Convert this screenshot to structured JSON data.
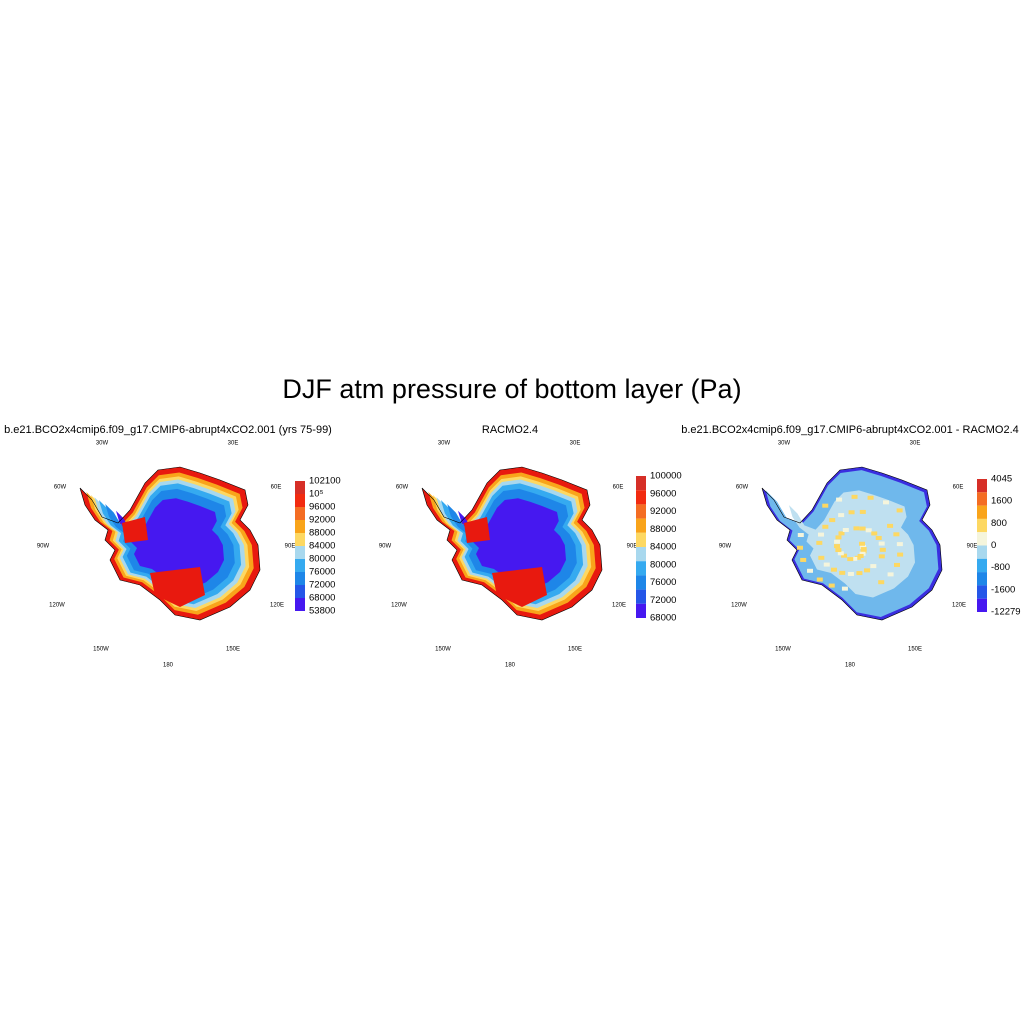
{
  "title": "DJF atm pressure of bottom layer (Pa)",
  "panels": [
    {
      "title": "b.e21.BCO2x4cmip6.f09_g17.CMIP6-abrupt4xCO2.001 (yrs 75-99)",
      "lon_labels": [
        "30W",
        "30E",
        "60W",
        "60E",
        "90W",
        "90E",
        "120W",
        "120E",
        "150W",
        "150E",
        "180"
      ],
      "colorbar": {
        "labels": [
          "102100",
          "10⁵",
          "96000",
          "92000",
          "88000",
          "84000",
          "80000",
          "76000",
          "72000",
          "68000",
          "53800"
        ],
        "colors": [
          "#d62f27",
          "#f22b10",
          "#f46d23",
          "#f9a41a",
          "#fdd862",
          "#a8d8ee",
          "#35aaf0",
          "#1e86e8",
          "#2556e8",
          "#4618f0"
        ]
      }
    },
    {
      "title": "RACMO2.4",
      "lon_labels": [
        "30W",
        "30E",
        "60W",
        "60E",
        "90W",
        "90E",
        "120W",
        "120E",
        "150W",
        "150E",
        "180"
      ],
      "colorbar": {
        "labels": [
          "100000",
          "96000",
          "92000",
          "88000",
          "84000",
          "80000",
          "76000",
          "72000",
          "68000"
        ],
        "colors": [
          "#d62f27",
          "#f22b10",
          "#f46d23",
          "#f9a41a",
          "#fdd862",
          "#a8d8ee",
          "#35aaf0",
          "#1e86e8",
          "#2556e8",
          "#4618f0"
        ]
      }
    },
    {
      "title": "b.e21.BCO2x4cmip6.f09_g17.CMIP6-abrupt4xCO2.001 - RACMO2.4",
      "lon_labels": [
        "30W",
        "30E",
        "60W",
        "60E",
        "90W",
        "90E",
        "120W",
        "120E",
        "150W",
        "150E",
        "180"
      ],
      "colorbar": {
        "labels": [
          "4045",
          "1600",
          "800",
          "0",
          "-800",
          "-1600",
          "-12279"
        ],
        "colors": [
          "#d62f27",
          "#f46d23",
          "#f9a41a",
          "#fdd862",
          "#f5f5dc",
          "#a8d8ee",
          "#35aaf0",
          "#1e86e8",
          "#2556e8",
          "#4618f0"
        ]
      }
    }
  ]
}
